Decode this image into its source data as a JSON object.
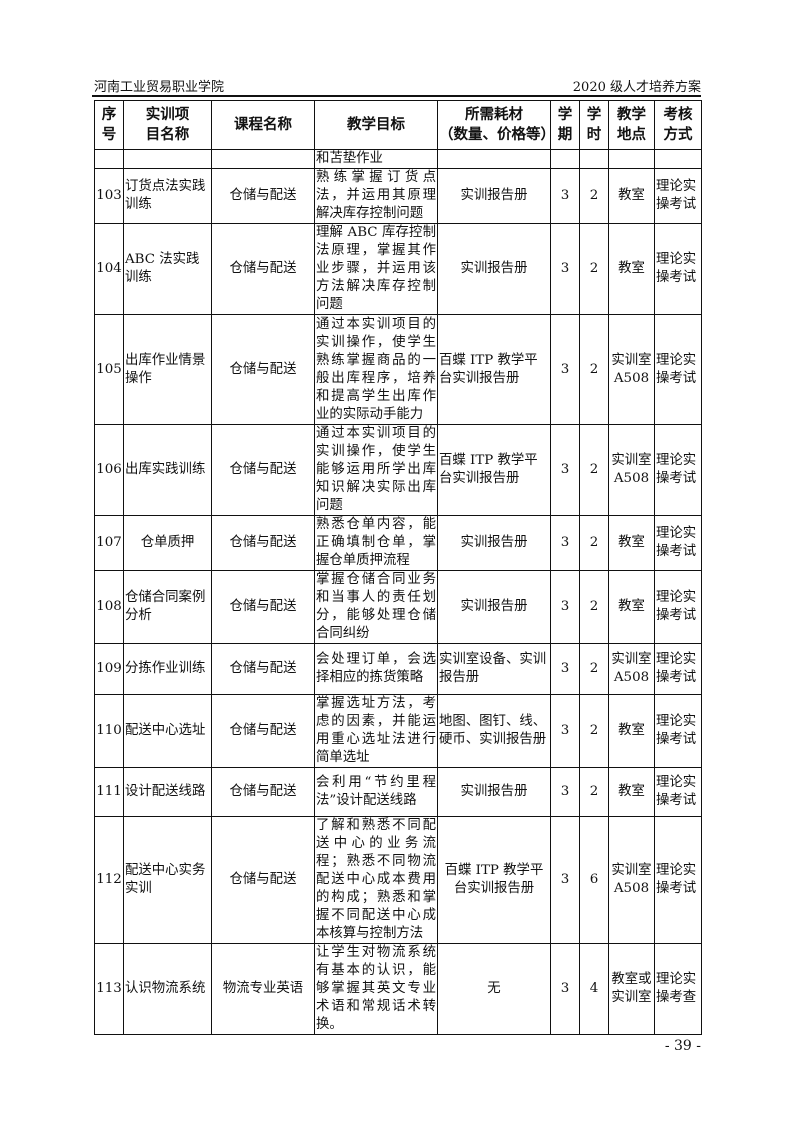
{
  "header": {
    "left": "河南工业贸易职业学院",
    "right": "2020 级人才培养方案"
  },
  "columns": [
    "序号",
    "实训项目名称",
    "课程名称",
    "教学目标",
    "所需耗材（数量、价格等）",
    "学期",
    "学时",
    "教学地点",
    "考核方式"
  ],
  "continuation": {
    "goal": "和苫垫作业"
  },
  "rows": [
    {
      "no": "103",
      "name": "订货点法实践训练",
      "course": "仓储与配送",
      "goal": "熟练掌握订货点法，并运用其原理解决库存控制问题",
      "materials": "实训报告册",
      "term": "3",
      "hours": "2",
      "place": "教室",
      "exam": "理论实操考试"
    },
    {
      "no": "104",
      "name": "ABC 法实践训练",
      "course": "仓储与配送",
      "goal": "理解 ABC 库存控制法原理，掌握其作业步骤，并运用该方法解决库存控制问题",
      "materials": "实训报告册",
      "term": "3",
      "hours": "2",
      "place": "教室",
      "exam": "理论实操考试"
    },
    {
      "no": "105",
      "name": "出库作业情景操作",
      "course": "仓储与配送",
      "goal": "通过本实训项目的实训操作，使学生熟练掌握商品的一般出库程序，培养和提高学生出库作业的实际动手能力",
      "materials": "百蝶 ITP 教学平台实训报告册",
      "term": "3",
      "hours": "2",
      "place": "实训室A508",
      "exam": "理论实操考试"
    },
    {
      "no": "106",
      "name": "出库实践训练",
      "course": "仓储与配送",
      "goal": "通过本实训项目的实训操作，使学生能够运用所学出库知识解决实际出库问题",
      "materials": "百蝶 ITP 教学平台实训报告册",
      "term": "3",
      "hours": "2",
      "place": "实训室A508",
      "exam": "理论实操考试"
    },
    {
      "no": "107",
      "name": "仓单质押",
      "course": "仓储与配送",
      "goal": "熟悉仓单内容，能正确填制仓单，掌握仓单质押流程",
      "materials": "实训报告册",
      "term": "3",
      "hours": "2",
      "place": "教室",
      "exam": "理论实操考试"
    },
    {
      "no": "108",
      "name": "仓储合同案例分析",
      "course": "仓储与配送",
      "goal": "掌握仓储合同业务和当事人的责任划分，能够处理仓储合同纠纷",
      "materials": "实训报告册",
      "term": "3",
      "hours": "2",
      "place": "教室",
      "exam": "理论实操考试"
    },
    {
      "no": "109",
      "name": "分拣作业训练",
      "course": "仓储与配送",
      "goal": "会处理订单，会选择相应的拣货策略",
      "materials": "实训室设备、实训报告册",
      "term": "3",
      "hours": "2",
      "place": "实训室A508",
      "exam": "理论实操考试"
    },
    {
      "no": "110",
      "name": "配送中心选址",
      "course": "仓储与配送",
      "goal": "掌握选址方法，考虑的因素，并能运用重心选址法进行简单选址",
      "materials": "地图、图钉、线、硬币、实训报告册",
      "term": "3",
      "hours": "2",
      "place": "教室",
      "exam": "理论实操考试"
    },
    {
      "no": "111",
      "name": "设计配送线路",
      "course": "仓储与配送",
      "goal": "会利用“节约里程法”设计配送线路",
      "materials": "实训报告册",
      "term": "3",
      "hours": "2",
      "place": "教室",
      "exam": "理论实操考试"
    },
    {
      "no": "112",
      "name": "配送中心实务实训",
      "course": "仓储与配送",
      "goal": "了解和熟悉不同配送中心的业务流程；熟悉不同物流配送中心成本费用的构成；熟悉和掌握不同配送中心成本核算与控制方法",
      "materials": "百蝶 ITP 教学平台实训报告册",
      "term": "3",
      "hours": "6",
      "place": "实训室A508",
      "exam": "理论实操考试"
    },
    {
      "no": "113",
      "name": "认识物流系统",
      "course": "物流专业英语",
      "goal": "让学生对物流系统有基本的认识，能够掌握其英文专业术语和常规话术转换。",
      "materials": "无",
      "term": "3",
      "hours": "4",
      "place": "教室或实训室",
      "exam": "理论实操考查"
    }
  ],
  "page_number": "- 39 -"
}
